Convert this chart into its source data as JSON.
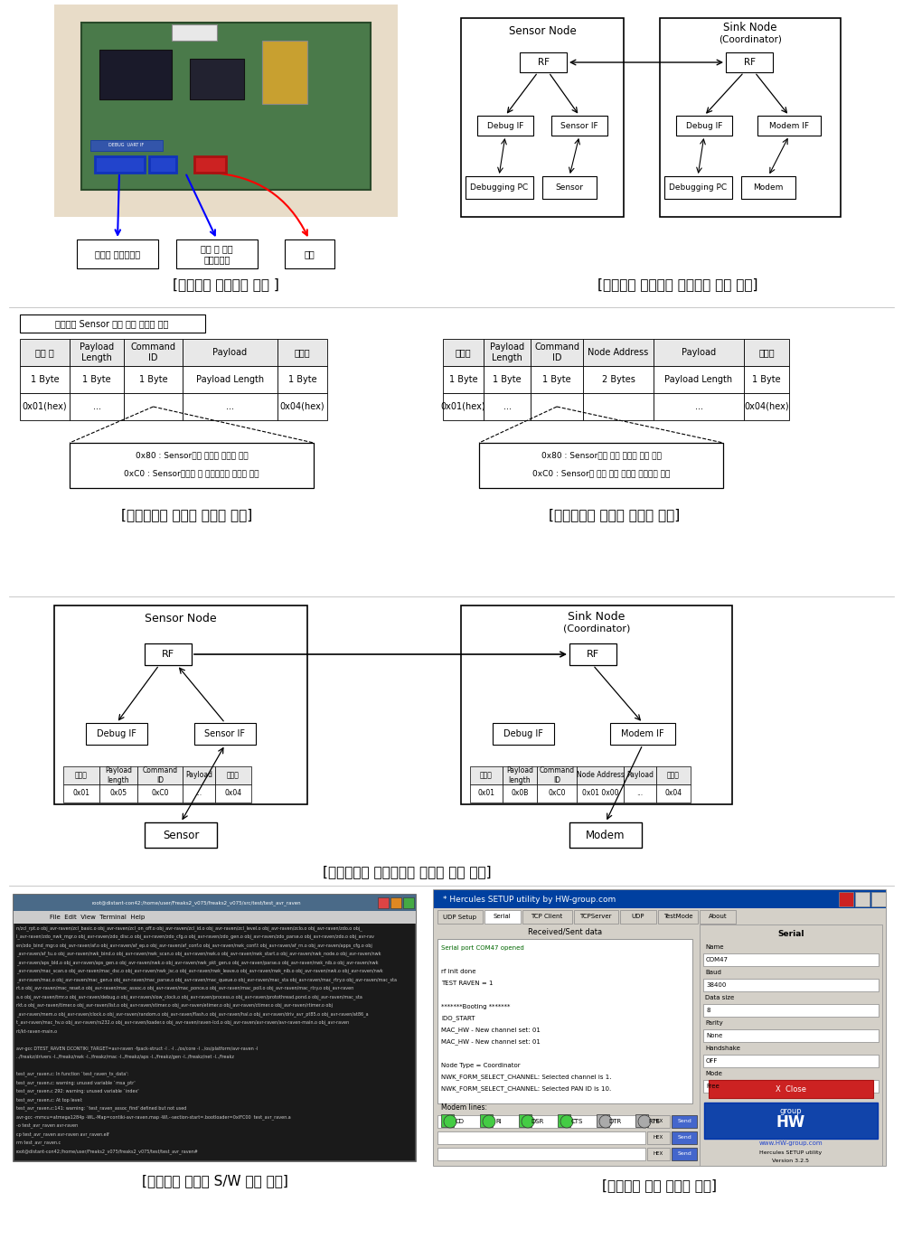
{
  "bg_color": "#ffffff",
  "sections": {
    "section1_caption_left": "[환경관리 센서노드 구조 ]",
    "section1_caption_right": "[환경관리 센서노드 프로토콜 흐름 구조]",
    "section2_caption_left": "[센서노드와 센서간 메시지 포맷]",
    "section2_caption_right": "[싱크노드와 모뎀간 메시지 포맷]",
    "section3_caption": "[센서노드와 싱크노드간 메시지 흐름 구조]",
    "section4_caption_left": "[프로토콜 경량화 S/W 개발 환경]",
    "section4_caption_right": "[센서노드 동작 디버깅 화면]"
  },
  "table1_headers": [
    "시작 시",
    "Payload\nLength",
    "Command\nID",
    "Payload",
    "종료시"
  ],
  "table1_row1": [
    "1 Byte",
    "1 Byte",
    "1 Byte",
    "Payload Length",
    "1 Byte"
  ],
  "table1_row2": [
    "0x01(hex)",
    "...",
    "",
    "...",
    "0x04(hex)"
  ],
  "table2_headers": [
    "시작자",
    "Payload\nLength",
    "Command\nID",
    "Node Address",
    "Payload",
    "종료자"
  ],
  "table2_row1": [
    "1 Byte",
    "1 Byte",
    "1 Byte",
    "2 Bytes",
    "Payload Length",
    "1 Byte"
  ],
  "table2_row2": [
    "0x01(hex)",
    "...",
    "",
    "",
    "...",
    "0x04(hex)"
  ],
  "note1_lines": [
    "0x80 : Sensor에서 내리는 신호를 보냄",
    "0xC0 : Sensor로부터 내 하버신호형 응답을 보음"
  ],
  "note2_lines": [
    "0x80 : Sensor에게 다음 데이터 송신 요청",
    "0xC0 : Sensor로 받은 다음 데이터 송신완료 보고"
  ],
  "table3_headers": [
    "시작자",
    "Payload\nlength",
    "Command\nID",
    "Payload",
    "종료자"
  ],
  "table3_row1": [
    "0x01",
    "0x05",
    "0xC0",
    "...",
    "0x04"
  ],
  "table4_headers": [
    "시작자",
    "Payload\nlength",
    "Command\nID",
    "Node Address",
    "Payload",
    "종료자"
  ],
  "table4_row1": [
    "0x01",
    "0x0B",
    "0xC0",
    "0x01 0x00",
    "...",
    "0x04"
  ],
  "recv_lines": [
    [
      "Serial port COM47 opened",
      "#006600"
    ],
    [
      "",
      "#000000"
    ],
    [
      "rf init done",
      "#000000"
    ],
    [
      "TEST RAVEN = 1",
      "#000000"
    ],
    [
      "",
      "#000000"
    ],
    [
      "*******Booting *******",
      "#000000"
    ],
    [
      "IDO_START",
      "#000000"
    ],
    [
      "MAC_HW - New channel set: 01",
      "#000000"
    ],
    [
      "MAC_HW - New channel set: 01",
      "#000000"
    ],
    [
      "",
      "#000000"
    ],
    [
      "Node Type = Coordinator",
      "#000000"
    ],
    [
      "NWK_FORM_SELECT_CHANNEL: Selected channel is 1.",
      "#000000"
    ],
    [
      "NWK_FORM_SELECT_CHANNEL: Selected PAN ID is 10.",
      "#000000"
    ]
  ],
  "terminal_lines": [
    "n/zcl_rpt.o obj_avr-raven/zcl_basic.o obj_avr-raven/zcl_on_off.o obj_avr-raven/zcl_id.o obj_avr-raven/zcl_level.o obj_avr-raven/zclo.o obj_avr-raven/zdo.o obj_",
    "l_avr-raven/zdo_nwk_mgr.o obj_avr-raven/zdo_disc.o obj_avr-raven/zdo_cfg.o obj_avr-raven/zdo_gen.o obj_avr-raven/zdo_parse.o obj_avr-raven/zdo.o obj_avr-rav",
    "en/zdo_bind_mgr.o obj_avr-raven/af.o obj_avr-raven/af_ep.o obj_avr-raven/af_conf.o obj_avr-raven/nwk_conf.t obj_avr-raven/af_rn.o obj_avr-raven/apps_cfg.o obj",
    "_avr-raven/af_tu.o obj_avr-raven/nwk_bind.o obj_avr-raven/nwk_scan.o obj_avr-raven/nwk.o obj_avr-raven/nwk_start.o obj_avr-raven/nwk_node.o obj_avr-raven/nwk",
    "_avr-raven/aps_bld.o obj_avr-raven/aps_gen.o obj_avr-raven/nwk.o obj_avr-raven/nwk_pkt_gen.o obj_avr-raven/parse.o obj_avr-raven/nwk_nib.o obj_avr-raven/nwk",
    "_avr-raven/mac_scan.o obj_avr-raven/mac_dsc.o obj_avr-raven/nwk_jsc.o obj_avr-raven/nwk_leave.o obj_avr-raven/nwk_nib.o obj_avr-raven/nwk.o obj_avr-raven/nwk",
    "_avr-raven/mac.o obj_avr-raven/mac_gen.o obj_avr-raven/mac_parse.o obj_avr-raven/mac_queue.o obj_avr-raven/mac_sta obj_avr-raven/mac_rtry.o obj_avr-raven/mac_sta",
    "rt.o obj_avr-raven/mac_reset.o obj_avr-raven/mac_assoc.o obj_avr-raven/mac_ponce.o obj_avr-raven/mac_poll.o obj_avr-raven/mac_rtry.o obj_avr-raven",
    "a.o obj_avr-raven/tmr.o obj_avr-raven/debug.o obj_avr-raven/slow_clock.o obj_avr-raven/process.o obj_avr-raven/protothread.pond.o obj_avr-raven/mac_sta",
    "rkt.o obj_avr-raven/timer.o obj_avr-raven/list.o obj_avr-raven/stimer.o obj_avr-raven/etimer.o obj_avr-raven/ctimer.o obj_avr-raven/rtimer.o obj",
    "_avr-raven/mem.o obj_avr-raven/clock.o obj_avr-raven/random.o obj_avr-raven/flash.o obj_avr-raven/hal.o obj_avr-raven/driv_avr_pt85.o obj_avr-raven/at86_a",
    "t_avr-raven/mac_hv.o obj_avr-raven/rs232.o obj_avr-raven/loader.o obj_avr-raven/raven-lcd.o obj_avr-raven/avr-raven/avr-raven-main.o obj_avr-raven",
    "nt/kt-raven-main.o",
    "",
    "avr-gcc DTEST_RAVEN DCONTIKI_TARGET=avr-raven -fpack-struct -I . -I ../os/core -I ../os/platform/avr-raven -I",
    "../freakz/drivers -I../freakz/nwk -I../freakz/mac -I../freakz/aps -I../freakz/gen -I../freakz/net -I../freakz",
    "",
    "test_avr_raven.c: In function `test_raven_tx_data':",
    "test_avr_raven.c: warning: unused variable `msa_ptr'",
    "test_avr_raven.c 292: warning: unused variable `index'",
    "test_avr_raven.c: At top level:",
    "test_avr_raven.c:141: warning: `test_raven_assoc_find' defined but not used",
    "avr-gcc -mmcu=atmega1284p -WL,-Map=contiki-avr-raven.map -Wl,--section-start=.bootloader=0xIFC00  test_avr_raven.a",
    "-o test_avr_raven avr-raven",
    "cp test_avr_raven avr-raven avr_raven.elf",
    "rm test_avr_raven.c",
    "root@distant-con42:/home/user/Freaks2_v075/freaks2_v075/test/test_avr_raven#"
  ]
}
